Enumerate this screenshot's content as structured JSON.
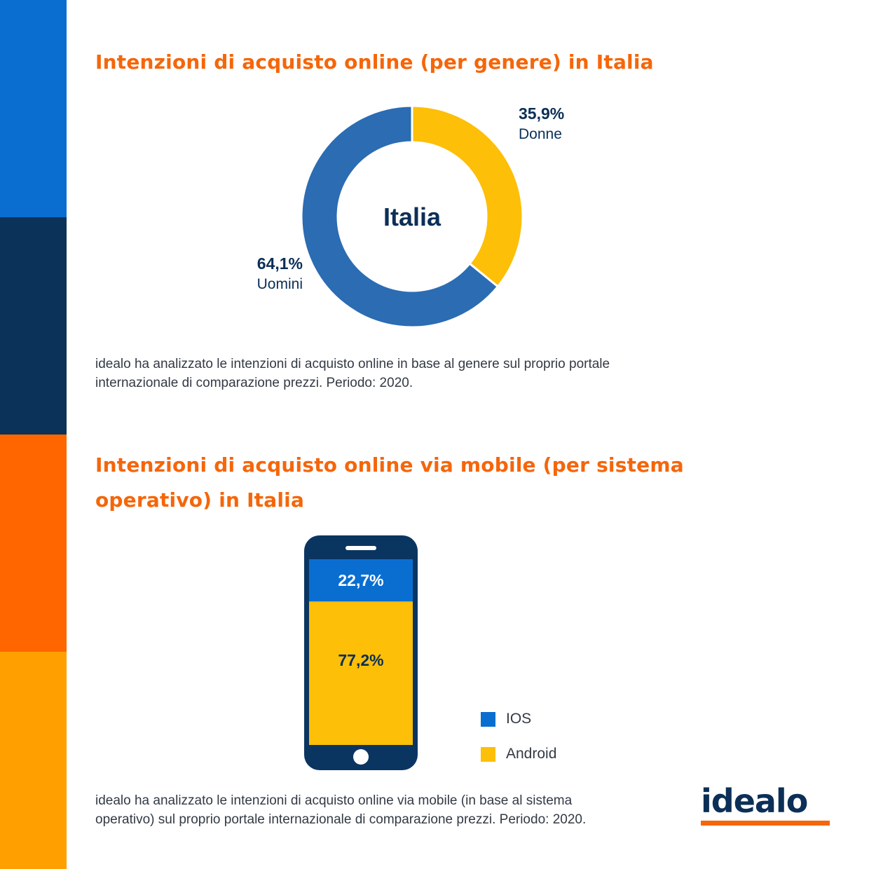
{
  "colors": {
    "bar_blue": "#0a6ed1",
    "bar_navy": "#0b3259",
    "bar_orange": "#ff6600",
    "bar_amber": "#ff9f00",
    "title_orange": "#f5660a",
    "text_navy": "#0b2f57",
    "slice_blue": "#2b6cb3",
    "slice_yellow": "#fdbf07",
    "ios_blue": "#0a6ed1",
    "android_yellow": "#fdbf07",
    "phone_body": "#0b3561"
  },
  "section1": {
    "title": "Intenzioni di acquisto online (per genere) in Italia",
    "description_line1": "idealo ha analizzato le intenzioni di acquisto online in base al genere sul proprio portale",
    "description_line2": "internazionale di comparazione prezzi. Periodo: 2020."
  },
  "section2": {
    "title_line1": "Intenzioni di acquisto online via mobile (per sistema",
    "title_line2": "operativo) in Italia",
    "description_line1": "idealo ha analizzato le intenzioni di acquisto online via mobile (in base al sistema",
    "description_line2": "operativo) sul proprio portale internazionale di comparazione prezzi. Periodo: 2020."
  },
  "logo": {
    "text": "idealo"
  },
  "chart_data": [
    {
      "type": "pie",
      "center_label": "Italia",
      "slices": [
        {
          "label": "Donne",
          "value": 35.9,
          "value_text": "35,9%",
          "color": "#fdbf07"
        },
        {
          "label": "Uomini",
          "value": 64.1,
          "value_text": "64,1%",
          "color": "#2b6cb3"
        }
      ]
    },
    {
      "type": "bar",
      "stacked": true,
      "categories": [
        "IOS",
        "Android"
      ],
      "values": [
        22.7,
        77.2
      ],
      "value_texts": [
        "22,7%",
        "77,2%"
      ],
      "colors": [
        "#0a6ed1",
        "#fdbf07"
      ],
      "legend": [
        "IOS",
        "Android"
      ],
      "legend_position": "right"
    }
  ]
}
